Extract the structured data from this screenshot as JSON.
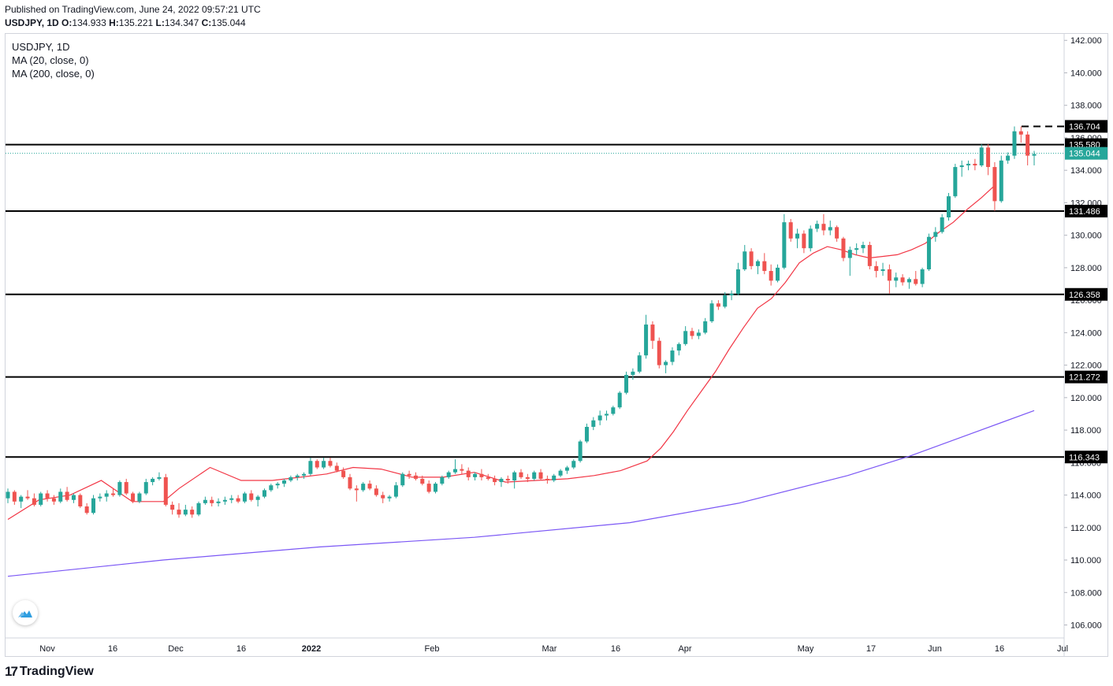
{
  "header": {
    "published": "Published on TradingView.com, June 24, 2022 09:57:21 UTC",
    "symbol_tf": "USDJPY, 1D",
    "o_label": "O:",
    "o_value": "134.933",
    "h_label": "H:",
    "h_value": "135.221",
    "l_label": "L:",
    "l_value": "134.347",
    "c_label": "C:",
    "c_value": "135.044"
  },
  "legend": {
    "title": "USDJPY, 1D",
    "ma20": "MA (20, close, 0)",
    "ma200": "MA (200, close, 0)"
  },
  "brand": {
    "logo_text": "TradingView",
    "logo_mark": "17"
  },
  "colors": {
    "up": "#26a69a",
    "down": "#ef5350",
    "ma20": "#f23645",
    "ma200": "#7b57f5",
    "level": "#000000",
    "price_line": "#26a69a"
  },
  "chart_data": {
    "type": "candlestick",
    "title": "USDJPY, 1D",
    "ylim": [
      105.2,
      142.4
    ],
    "y_ticks": [
      "106.000",
      "108.000",
      "110.000",
      "112.000",
      "114.000",
      "116.000",
      "118.000",
      "120.000",
      "122.000",
      "124.000",
      "126.000",
      "128.000",
      "130.000",
      "132.000",
      "134.000",
      "136.000",
      "138.000",
      "140.000",
      "142.000"
    ],
    "x_ticks": [
      "Nov",
      "16",
      "Dec",
      "16",
      "2022",
      "Feb",
      "Mar",
      "16",
      "Apr",
      "May",
      "17",
      "Jun",
      "16",
      "Jul"
    ],
    "x_tick_bold": [
      "2022"
    ],
    "horizontal_levels": [
      "116.343",
      "121.272",
      "126.358",
      "131.486",
      "135.580"
    ],
    "dashed_level": "136.704",
    "last_price": "135.044",
    "ma20_key": [
      [
        0,
        112.5
      ],
      [
        20,
        113.7
      ],
      [
        40,
        114.0
      ],
      [
        60,
        114.9
      ],
      [
        80,
        113.6
      ],
      [
        100,
        113.6
      ],
      [
        110,
        114.4
      ],
      [
        130,
        115.7
      ],
      [
        150,
        114.9
      ],
      [
        170,
        114.9
      ],
      [
        188,
        115.1
      ],
      [
        205,
        115.3
      ],
      [
        222,
        115.7
      ],
      [
        240,
        115.6
      ],
      [
        260,
        115.1
      ],
      [
        280,
        115.1
      ],
      [
        300,
        115.4
      ],
      [
        320,
        114.8
      ],
      [
        340,
        114.9
      ],
      [
        360,
        115.0
      ],
      [
        377,
        115.2
      ],
      [
        394,
        115.5
      ],
      [
        411,
        116.1
      ],
      [
        420,
        116.9
      ],
      [
        428,
        117.9
      ],
      [
        437,
        119.2
      ],
      [
        446,
        120.4
      ],
      [
        455,
        121.6
      ],
      [
        464,
        123.0
      ],
      [
        473,
        124.3
      ],
      [
        482,
        125.5
      ],
      [
        491,
        126.1
      ],
      [
        500,
        127.1
      ],
      [
        509,
        128.3
      ],
      [
        518,
        128.9
      ],
      [
        527,
        129.3
      ],
      [
        536,
        129.1
      ],
      [
        545,
        128.8
      ],
      [
        554,
        128.6
      ],
      [
        563,
        128.7
      ],
      [
        572,
        128.8
      ],
      [
        581,
        129.1
      ],
      [
        590,
        129.5
      ],
      [
        599,
        130.2
      ],
      [
        608,
        130.8
      ],
      [
        617,
        131.6
      ],
      [
        626,
        132.3
      ],
      [
        635,
        133.1
      ]
    ],
    "ma200_key": [
      [
        0,
        109.0
      ],
      [
        100,
        110.0
      ],
      [
        200,
        110.8
      ],
      [
        300,
        111.4
      ],
      [
        400,
        112.3
      ],
      [
        470,
        113.5
      ],
      [
        540,
        115.2
      ],
      [
        580,
        116.4
      ],
      [
        620,
        117.8
      ],
      [
        660,
        119.2
      ]
    ],
    "candles": [
      [
        113.8,
        114.4,
        113.5,
        114.2
      ],
      [
        114.2,
        114.3,
        113.4,
        113.6
      ],
      [
        113.6,
        114.0,
        113.2,
        113.9
      ],
      [
        113.9,
        114.3,
        113.7,
        113.8
      ],
      [
        113.8,
        114.1,
        113.3,
        113.4
      ],
      [
        113.4,
        114.2,
        113.3,
        114.1
      ],
      [
        114.1,
        114.3,
        113.6,
        113.8
      ],
      [
        113.8,
        114.0,
        113.4,
        113.6
      ],
      [
        113.6,
        114.4,
        113.5,
        114.2
      ],
      [
        114.2,
        114.5,
        113.6,
        113.7
      ],
      [
        113.7,
        114.1,
        113.5,
        114.0
      ],
      [
        114.0,
        114.1,
        113.2,
        113.3
      ],
      [
        113.3,
        113.5,
        112.8,
        112.9
      ],
      [
        112.9,
        114.0,
        112.8,
        113.8
      ],
      [
        113.8,
        114.1,
        113.6,
        113.9
      ],
      [
        113.9,
        114.3,
        113.6,
        114.1
      ],
      [
        114.1,
        114.4,
        113.9,
        114.0
      ],
      [
        114.0,
        114.9,
        113.9,
        114.8
      ],
      [
        114.8,
        115.0,
        114.0,
        114.1
      ],
      [
        114.1,
        114.2,
        113.5,
        113.6
      ],
      [
        113.6,
        114.2,
        113.5,
        114.1
      ],
      [
        114.1,
        115.0,
        114.0,
        114.8
      ],
      [
        114.8,
        115.1,
        114.6,
        115.0
      ],
      [
        115.0,
        115.4,
        114.9,
        115.1
      ],
      [
        115.1,
        115.3,
        113.3,
        113.4
      ],
      [
        113.4,
        113.6,
        112.8,
        113.1
      ],
      [
        113.1,
        113.5,
        112.6,
        112.8
      ],
      [
        112.8,
        113.4,
        112.7,
        113.1
      ],
      [
        113.1,
        113.3,
        112.6,
        112.8
      ],
      [
        112.8,
        113.6,
        112.7,
        113.5
      ],
      [
        113.5,
        113.9,
        113.4,
        113.7
      ],
      [
        113.7,
        113.9,
        113.3,
        113.5
      ],
      [
        113.5,
        113.8,
        113.3,
        113.6
      ],
      [
        113.6,
        113.9,
        113.4,
        113.7
      ],
      [
        113.7,
        114.0,
        113.5,
        113.8
      ],
      [
        113.8,
        114.0,
        113.5,
        113.6
      ],
      [
        113.6,
        114.2,
        113.5,
        114.1
      ],
      [
        114.1,
        114.3,
        113.6,
        113.7
      ],
      [
        113.7,
        114.0,
        113.3,
        113.9
      ],
      [
        113.9,
        114.4,
        113.8,
        114.3
      ],
      [
        114.3,
        114.7,
        114.2,
        114.6
      ],
      [
        114.6,
        114.8,
        114.4,
        114.7
      ],
      [
        114.7,
        115.0,
        114.5,
        114.9
      ],
      [
        114.9,
        115.2,
        114.8,
        115.1
      ],
      [
        115.1,
        115.3,
        114.9,
        115.2
      ],
      [
        115.2,
        115.4,
        115.0,
        115.3
      ],
      [
        115.3,
        116.3,
        115.2,
        116.1
      ],
      [
        116.1,
        116.2,
        115.6,
        115.7
      ],
      [
        115.7,
        116.3,
        115.6,
        116.1
      ],
      [
        116.1,
        116.3,
        115.7,
        115.8
      ],
      [
        115.8,
        116.0,
        115.4,
        115.5
      ],
      [
        115.5,
        115.7,
        115.0,
        115.1
      ],
      [
        115.1,
        115.3,
        114.3,
        114.4
      ],
      [
        114.4,
        114.6,
        113.6,
        114.3
      ],
      [
        114.3,
        114.8,
        114.2,
        114.7
      ],
      [
        114.7,
        114.9,
        114.3,
        114.4
      ],
      [
        114.4,
        114.6,
        113.9,
        114.0
      ],
      [
        114.0,
        114.2,
        113.5,
        113.8
      ],
      [
        113.8,
        114.0,
        113.6,
        113.9
      ],
      [
        113.9,
        114.8,
        113.8,
        114.6
      ],
      [
        114.6,
        115.4,
        114.5,
        115.3
      ],
      [
        115.3,
        115.5,
        115.0,
        115.2
      ],
      [
        115.2,
        115.4,
        114.9,
        115.0
      ],
      [
        115.0,
        115.2,
        114.6,
        114.7
      ],
      [
        114.7,
        114.9,
        114.1,
        114.2
      ],
      [
        114.2,
        114.8,
        114.1,
        114.7
      ],
      [
        114.7,
        115.2,
        114.6,
        115.1
      ],
      [
        115.1,
        115.5,
        115.0,
        115.4
      ],
      [
        115.4,
        116.2,
        115.3,
        115.6
      ],
      [
        115.6,
        115.9,
        115.3,
        115.5
      ],
      [
        115.5,
        115.7,
        114.9,
        115.1
      ],
      [
        115.1,
        115.4,
        114.9,
        115.3
      ],
      [
        115.3,
        115.6,
        114.9,
        115.1
      ],
      [
        115.1,
        115.3,
        114.9,
        115.0
      ],
      [
        115.0,
        115.2,
        114.6,
        114.8
      ],
      [
        114.8,
        115.1,
        114.5,
        115.0
      ],
      [
        115.0,
        115.2,
        114.7,
        114.9
      ],
      [
        114.9,
        115.5,
        114.4,
        115.4
      ],
      [
        115.4,
        115.6,
        115.0,
        115.1
      ],
      [
        115.1,
        115.3,
        114.8,
        115.0
      ],
      [
        115.0,
        115.5,
        114.9,
        115.4
      ],
      [
        115.4,
        115.6,
        114.9,
        115.0
      ],
      [
        115.0,
        115.2,
        114.7,
        114.9
      ],
      [
        114.9,
        115.3,
        114.8,
        115.2
      ],
      [
        115.2,
        115.6,
        115.1,
        115.5
      ],
      [
        115.5,
        115.8,
        115.3,
        115.7
      ],
      [
        115.7,
        116.2,
        115.6,
        116.1
      ],
      [
        116.1,
        117.4,
        116.0,
        117.3
      ],
      [
        117.3,
        118.4,
        117.2,
        118.2
      ],
      [
        118.2,
        118.8,
        118.0,
        118.6
      ],
      [
        118.6,
        119.2,
        118.3,
        118.9
      ],
      [
        118.9,
        119.2,
        118.6,
        119.0
      ],
      [
        119.0,
        119.5,
        118.9,
        119.4
      ],
      [
        119.4,
        120.4,
        119.3,
        120.3
      ],
      [
        120.3,
        121.6,
        120.2,
        121.4
      ],
      [
        121.4,
        121.8,
        121.1,
        121.6
      ],
      [
        121.6,
        122.8,
        121.5,
        122.6
      ],
      [
        122.6,
        125.1,
        122.4,
        124.5
      ],
      [
        124.5,
        124.7,
        123.0,
        123.5
      ],
      [
        123.5,
        123.7,
        121.8,
        122.0
      ],
      [
        122.0,
        122.3,
        121.5,
        122.2
      ],
      [
        122.2,
        123.1,
        122.0,
        122.9
      ],
      [
        122.9,
        123.4,
        122.6,
        123.3
      ],
      [
        123.3,
        124.4,
        123.2,
        124.1
      ],
      [
        124.1,
        124.3,
        123.6,
        123.8
      ],
      [
        123.8,
        124.2,
        123.6,
        124.0
      ],
      [
        124.0,
        124.9,
        123.9,
        124.7
      ],
      [
        124.7,
        126.0,
        124.6,
        125.8
      ],
      [
        125.8,
        126.0,
        125.4,
        125.6
      ],
      [
        125.6,
        126.5,
        125.5,
        126.3
      ],
      [
        126.3,
        126.6,
        126.0,
        126.4
      ],
      [
        126.4,
        128.3,
        126.3,
        127.9
      ],
      [
        127.9,
        129.4,
        127.8,
        129.0
      ],
      [
        129.0,
        129.2,
        127.9,
        128.1
      ],
      [
        128.1,
        128.5,
        127.6,
        128.4
      ],
      [
        128.4,
        128.9,
        127.6,
        127.8
      ],
      [
        127.8,
        128.2,
        126.9,
        127.2
      ],
      [
        127.2,
        128.2,
        127.1,
        128.0
      ],
      [
        128.0,
        131.3,
        127.9,
        130.8
      ],
      [
        130.8,
        131.0,
        129.6,
        129.8
      ],
      [
        129.8,
        130.4,
        129.2,
        130.1
      ],
      [
        130.1,
        130.3,
        128.9,
        129.2
      ],
      [
        129.2,
        130.6,
        129.0,
        130.4
      ],
      [
        130.4,
        130.9,
        130.2,
        130.7
      ],
      [
        130.7,
        131.3,
        130.0,
        130.3
      ],
      [
        130.3,
        130.9,
        130.0,
        130.5
      ],
      [
        130.5,
        130.6,
        129.6,
        129.8
      ],
      [
        129.8,
        129.9,
        128.4,
        128.6
      ],
      [
        128.6,
        129.3,
        127.5,
        129.1
      ],
      [
        129.1,
        129.5,
        128.8,
        129.2
      ],
      [
        129.2,
        129.6,
        128.9,
        129.4
      ],
      [
        129.4,
        129.6,
        127.9,
        128.1
      ],
      [
        128.1,
        128.4,
        127.4,
        127.8
      ],
      [
        127.8,
        128.3,
        127.5,
        127.9
      ],
      [
        127.9,
        128.2,
        126.4,
        127.2
      ],
      [
        127.2,
        127.7,
        126.8,
        127.4
      ],
      [
        127.4,
        127.6,
        126.9,
        127.1
      ],
      [
        127.1,
        127.4,
        126.7,
        127.3
      ],
      [
        127.3,
        127.8,
        126.9,
        127.0
      ],
      [
        127.0,
        128.0,
        126.8,
        127.9
      ],
      [
        127.9,
        130.1,
        127.8,
        129.9
      ],
      [
        129.9,
        130.5,
        129.6,
        130.2
      ],
      [
        130.2,
        131.3,
        130.1,
        131.1
      ],
      [
        131.1,
        132.6,
        130.9,
        132.4
      ],
      [
        132.4,
        134.4,
        132.3,
        134.2
      ],
      [
        134.2,
        134.6,
        133.6,
        134.3
      ],
      [
        134.3,
        134.6,
        134.0,
        134.4
      ],
      [
        134.4,
        134.7,
        134.0,
        134.3
      ],
      [
        134.3,
        135.6,
        134.2,
        135.4
      ],
      [
        135.4,
        135.6,
        133.7,
        134.2
      ],
      [
        134.2,
        134.5,
        131.5,
        132.1
      ],
      [
        132.1,
        134.9,
        132.0,
        134.6
      ],
      [
        134.6,
        135.1,
        134.4,
        134.9
      ],
      [
        134.9,
        136.7,
        134.7,
        136.4
      ],
      [
        136.4,
        136.7,
        135.7,
        136.2
      ],
      [
        136.2,
        136.4,
        134.3,
        134.9
      ],
      [
        134.9,
        135.2,
        134.3,
        135.0
      ]
    ]
  }
}
